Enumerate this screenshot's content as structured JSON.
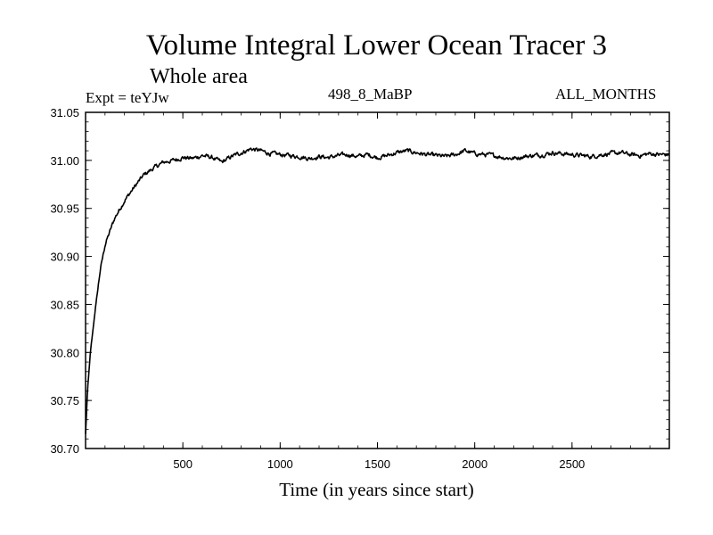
{
  "chart_data": {
    "type": "line",
    "title": "Volume Integral Lower Ocean Tracer 3",
    "subtitle": "Whole area",
    "expt_label": "Expt = teYJw",
    "run_label": "498_8_MaBP",
    "months_label": "ALL_MONTHS",
    "xlabel": "Time (in years since start)",
    "ylabel": "",
    "xlim": [
      0,
      3000
    ],
    "ylim": [
      30.7,
      31.05
    ],
    "x_ticks": [
      500,
      1000,
      1500,
      2000,
      2500
    ],
    "x_tick_labels": [
      "500",
      "1000",
      "1500",
      "2000",
      "2500"
    ],
    "y_ticks": [
      30.7,
      30.75,
      30.8,
      30.85,
      30.9,
      30.95,
      31.0,
      31.05
    ],
    "y_tick_labels": [
      "30.70",
      "30.75",
      "30.80",
      "30.85",
      "30.90",
      "30.95",
      "31.00",
      "31.05"
    ],
    "series": [
      {
        "name": "Volume Integral Lower Ocean Tracer 3",
        "color": "#000000",
        "x": [
          0,
          10,
          25,
          50,
          75,
          100,
          150,
          200,
          250,
          300,
          350,
          400,
          450,
          500,
          550,
          600,
          650,
          700,
          750,
          800,
          850,
          900,
          950,
          1000,
          1050,
          1100,
          1150,
          1200,
          1250,
          1300,
          1350,
          1400,
          1450,
          1500,
          1550,
          1600,
          1650,
          1700,
          1750,
          1800,
          1850,
          1900,
          1950,
          2000,
          2050,
          2100,
          2150,
          2200,
          2250,
          2300,
          2350,
          2400,
          2450,
          2500,
          2550,
          2600,
          2650,
          2700,
          2750,
          2800,
          2850,
          2900,
          2950,
          3000
        ],
        "y": [
          30.715,
          30.76,
          30.8,
          30.845,
          30.885,
          30.912,
          30.94,
          30.958,
          30.972,
          30.985,
          30.992,
          30.998,
          31.0,
          31.003,
          31.002,
          31.005,
          31.003,
          30.998,
          31.004,
          31.008,
          31.012,
          31.01,
          31.007,
          31.006,
          31.005,
          31.004,
          31.002,
          31.004,
          31.003,
          31.005,
          31.006,
          31.004,
          31.006,
          31.003,
          31.005,
          31.008,
          31.01,
          31.008,
          31.006,
          31.005,
          31.004,
          31.006,
          31.01,
          31.007,
          31.006,
          31.005,
          31.003,
          31.002,
          31.004,
          31.005,
          31.006,
          31.008,
          31.007,
          31.006,
          31.005,
          31.004,
          31.006,
          31.007,
          31.008,
          31.006,
          31.005,
          31.007,
          31.006,
          31.006
        ]
      }
    ]
  }
}
